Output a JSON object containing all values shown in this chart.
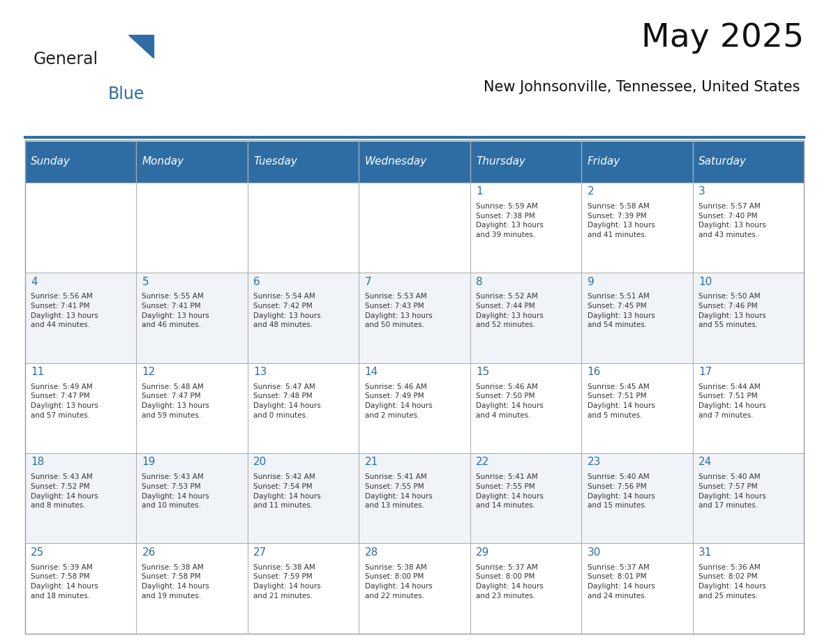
{
  "title": "May 2025",
  "subtitle": "New Johnsonville, Tennessee, United States",
  "header_bg": "#2E6DA4",
  "header_text": "#FFFFFF",
  "day_headers": [
    "Sunday",
    "Monday",
    "Tuesday",
    "Wednesday",
    "Thursday",
    "Friday",
    "Saturday"
  ],
  "day_number_color": "#2E6DA4",
  "cell_text_color": "#333333",
  "calendar_data": [
    [
      "",
      "",
      "",
      "",
      "1",
      "2",
      "3"
    ],
    [
      "4",
      "5",
      "6",
      "7",
      "8",
      "9",
      "10"
    ],
    [
      "11",
      "12",
      "13",
      "14",
      "15",
      "16",
      "17"
    ],
    [
      "18",
      "19",
      "20",
      "21",
      "22",
      "23",
      "24"
    ],
    [
      "25",
      "26",
      "27",
      "28",
      "29",
      "30",
      "31"
    ]
  ],
  "cell_content": {
    "1": "Sunrise: 5:59 AM\nSunset: 7:38 PM\nDaylight: 13 hours\nand 39 minutes.",
    "2": "Sunrise: 5:58 AM\nSunset: 7:39 PM\nDaylight: 13 hours\nand 41 minutes.",
    "3": "Sunrise: 5:57 AM\nSunset: 7:40 PM\nDaylight: 13 hours\nand 43 minutes.",
    "4": "Sunrise: 5:56 AM\nSunset: 7:41 PM\nDaylight: 13 hours\nand 44 minutes.",
    "5": "Sunrise: 5:55 AM\nSunset: 7:41 PM\nDaylight: 13 hours\nand 46 minutes.",
    "6": "Sunrise: 5:54 AM\nSunset: 7:42 PM\nDaylight: 13 hours\nand 48 minutes.",
    "7": "Sunrise: 5:53 AM\nSunset: 7:43 PM\nDaylight: 13 hours\nand 50 minutes.",
    "8": "Sunrise: 5:52 AM\nSunset: 7:44 PM\nDaylight: 13 hours\nand 52 minutes.",
    "9": "Sunrise: 5:51 AM\nSunset: 7:45 PM\nDaylight: 13 hours\nand 54 minutes.",
    "10": "Sunrise: 5:50 AM\nSunset: 7:46 PM\nDaylight: 13 hours\nand 55 minutes.",
    "11": "Sunrise: 5:49 AM\nSunset: 7:47 PM\nDaylight: 13 hours\nand 57 minutes.",
    "12": "Sunrise: 5:48 AM\nSunset: 7:47 PM\nDaylight: 13 hours\nand 59 minutes.",
    "13": "Sunrise: 5:47 AM\nSunset: 7:48 PM\nDaylight: 14 hours\nand 0 minutes.",
    "14": "Sunrise: 5:46 AM\nSunset: 7:49 PM\nDaylight: 14 hours\nand 2 minutes.",
    "15": "Sunrise: 5:46 AM\nSunset: 7:50 PM\nDaylight: 14 hours\nand 4 minutes.",
    "16": "Sunrise: 5:45 AM\nSunset: 7:51 PM\nDaylight: 14 hours\nand 5 minutes.",
    "17": "Sunrise: 5:44 AM\nSunset: 7:51 PM\nDaylight: 14 hours\nand 7 minutes.",
    "18": "Sunrise: 5:43 AM\nSunset: 7:52 PM\nDaylight: 14 hours\nand 8 minutes.",
    "19": "Sunrise: 5:43 AM\nSunset: 7:53 PM\nDaylight: 14 hours\nand 10 minutes.",
    "20": "Sunrise: 5:42 AM\nSunset: 7:54 PM\nDaylight: 14 hours\nand 11 minutes.",
    "21": "Sunrise: 5:41 AM\nSunset: 7:55 PM\nDaylight: 14 hours\nand 13 minutes.",
    "22": "Sunrise: 5:41 AM\nSunset: 7:55 PM\nDaylight: 14 hours\nand 14 minutes.",
    "23": "Sunrise: 5:40 AM\nSunset: 7:56 PM\nDaylight: 14 hours\nand 15 minutes.",
    "24": "Sunrise: 5:40 AM\nSunset: 7:57 PM\nDaylight: 14 hours\nand 17 minutes.",
    "25": "Sunrise: 5:39 AM\nSunset: 7:58 PM\nDaylight: 14 hours\nand 18 minutes.",
    "26": "Sunrise: 5:38 AM\nSunset: 7:58 PM\nDaylight: 14 hours\nand 19 minutes.",
    "27": "Sunrise: 5:38 AM\nSunset: 7:59 PM\nDaylight: 14 hours\nand 21 minutes.",
    "28": "Sunrise: 5:38 AM\nSunset: 8:00 PM\nDaylight: 14 hours\nand 22 minutes.",
    "29": "Sunrise: 5:37 AM\nSunset: 8:00 PM\nDaylight: 14 hours\nand 23 minutes.",
    "30": "Sunrise: 5:37 AM\nSunset: 8:01 PM\nDaylight: 14 hours\nand 24 minutes.",
    "31": "Sunrise: 5:36 AM\nSunset: 8:02 PM\nDaylight: 14 hours\nand 25 minutes."
  },
  "logo_text_general": "General",
  "logo_text_blue": "Blue",
  "logo_color_general": "#222222",
  "logo_color_blue": "#2E6DA4",
  "logo_triangle_color": "#2E6DA4",
  "separator_color": "#2E6DA4"
}
